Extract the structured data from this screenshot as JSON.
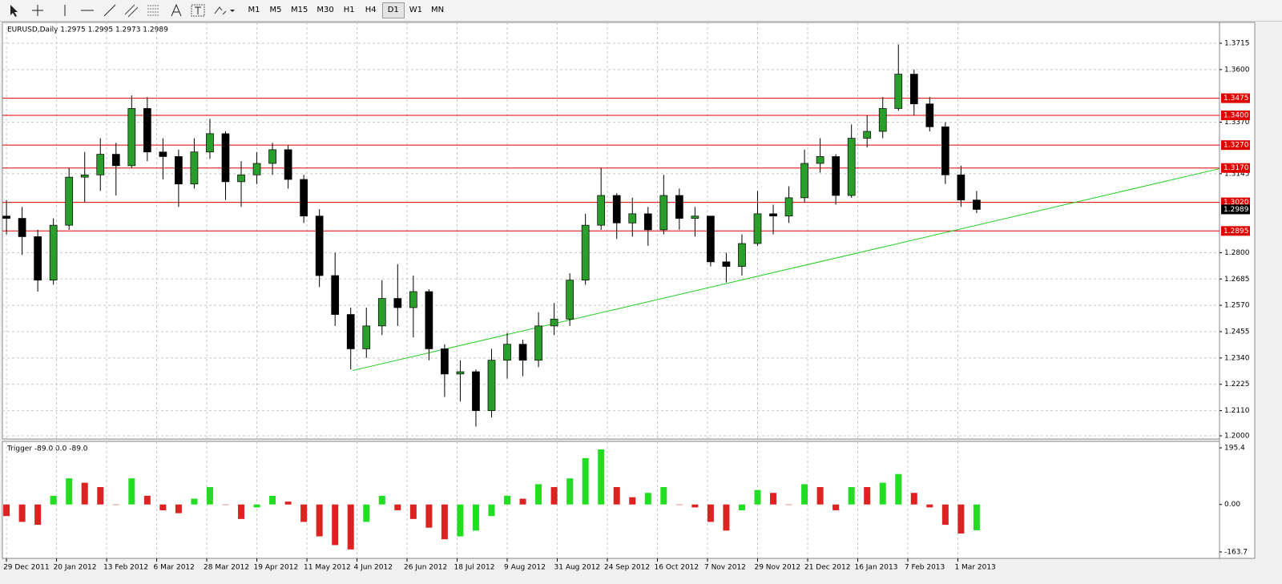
{
  "toolbar": {
    "timeframes": [
      "M1",
      "M5",
      "M15",
      "M30",
      "H1",
      "H4",
      "D1",
      "W1",
      "MN"
    ],
    "active": 6
  },
  "chart_data": [
    {
      "type": "candlestick",
      "title": "EURUSD,Daily  1.2975 1.2995 1.2973 1.2989",
      "x": [
        0,
        5,
        10,
        15,
        20,
        25,
        30,
        35,
        40,
        45,
        50,
        55,
        60,
        65,
        70,
        75,
        80,
        85,
        90,
        95,
        100,
        105,
        110,
        115,
        120,
        125,
        130,
        135,
        140,
        145,
        150,
        155,
        160,
        165,
        170,
        175,
        180,
        185,
        190,
        195,
        200,
        205,
        210,
        215,
        220,
        225,
        230,
        235,
        240,
        245,
        250,
        255,
        260,
        265,
        270,
        275,
        280,
        285,
        290,
        295,
        300,
        305,
        310
      ],
      "open": [
        1.296,
        1.295,
        1.287,
        1.268,
        1.292,
        1.313,
        1.314,
        1.323,
        1.318,
        1.343,
        1.324,
        1.322,
        1.31,
        1.324,
        1.332,
        1.311,
        1.314,
        1.319,
        1.325,
        1.312,
        1.296,
        1.27,
        1.253,
        1.238,
        1.248,
        1.26,
        1.256,
        1.263,
        1.238,
        1.227,
        1.228,
        1.211,
        1.233,
        1.24,
        1.233,
        1.248,
        1.251,
        1.268,
        1.292,
        1.305,
        1.293,
        1.297,
        1.29,
        1.305,
        1.295,
        1.296,
        1.276,
        1.274,
        1.284,
        1.297,
        1.296,
        1.304,
        1.319,
        1.322,
        1.305,
        1.33,
        1.333,
        1.343,
        1.358,
        1.345,
        1.335,
        1.314,
        1.303
      ],
      "high": [
        1.303,
        1.3,
        1.29,
        1.295,
        1.317,
        1.324,
        1.33,
        1.328,
        1.3487,
        1.348,
        1.33,
        1.325,
        1.33,
        1.3385,
        1.333,
        1.32,
        1.324,
        1.328,
        1.327,
        1.314,
        1.299,
        1.28,
        1.256,
        1.256,
        1.268,
        1.275,
        1.27,
        1.264,
        1.24,
        1.233,
        1.229,
        1.238,
        1.245,
        1.242,
        1.254,
        1.258,
        1.271,
        1.297,
        1.317,
        1.306,
        1.304,
        1.3,
        1.314,
        1.308,
        1.3,
        1.296,
        1.28,
        1.288,
        1.307,
        1.301,
        1.309,
        1.325,
        1.33,
        1.323,
        1.336,
        1.34,
        1.348,
        1.371,
        1.36,
        1.348,
        1.337,
        1.318,
        1.307
      ],
      "low": [
        1.288,
        1.279,
        1.263,
        1.266,
        1.29,
        1.302,
        1.307,
        1.305,
        1.317,
        1.32,
        1.312,
        1.3,
        1.308,
        1.321,
        1.303,
        1.3,
        1.31,
        1.314,
        1.308,
        1.293,
        1.265,
        1.248,
        1.229,
        1.234,
        1.244,
        1.248,
        1.243,
        1.233,
        1.217,
        1.215,
        1.204,
        1.208,
        1.225,
        1.226,
        1.23,
        1.244,
        1.248,
        1.266,
        1.29,
        1.286,
        1.287,
        1.283,
        1.288,
        1.29,
        1.287,
        1.274,
        1.267,
        1.27,
        1.283,
        1.288,
        1.293,
        1.302,
        1.315,
        1.301,
        1.304,
        1.326,
        1.33,
        1.342,
        1.34,
        1.333,
        1.31,
        1.3,
        1.2973
      ],
      "close": [
        1.295,
        1.287,
        1.268,
        1.292,
        1.313,
        1.314,
        1.323,
        1.318,
        1.343,
        1.324,
        1.322,
        1.31,
        1.324,
        1.332,
        1.311,
        1.314,
        1.319,
        1.325,
        1.312,
        1.296,
        1.27,
        1.253,
        1.238,
        1.248,
        1.26,
        1.256,
        1.263,
        1.238,
        1.227,
        1.228,
        1.211,
        1.233,
        1.24,
        1.233,
        1.248,
        1.251,
        1.268,
        1.292,
        1.305,
        1.293,
        1.297,
        1.29,
        1.305,
        1.295,
        1.296,
        1.276,
        1.274,
        1.284,
        1.297,
        1.296,
        1.304,
        1.319,
        1.322,
        1.305,
        1.33,
        1.333,
        1.343,
        1.358,
        1.345,
        1.335,
        1.314,
        1.303,
        1.2989
      ],
      "up_color": "#2a9d2a",
      "down_color": "#000000",
      "xlim": [
        -1.3,
        387.6
      ],
      "ylim": [
        1.1986,
        1.3806
      ],
      "yticks": [
        1.3715,
        {
          "value": 1.36,
          "label": "1.3600"
        },
        {
          "value": 1.337,
          "label": "1.3370"
        },
        1.3145,
        {
          "value": 1.28,
          "label": "1.2800"
        },
        1.2685,
        {
          "value": 1.257,
          "label": "1.2570"
        },
        1.2455,
        {
          "value": 1.234,
          "label": "1.2340"
        },
        1.2225,
        {
          "value": 1.211,
          "label": "1.2110"
        },
        {
          "value": 1.2,
          "label": "1.2000"
        }
      ],
      "levels": [
        1.3475,
        {
          "value": 1.34,
          "label": "1.3400"
        },
        {
          "value": 1.327,
          "label": "1.3270"
        },
        {
          "value": 1.317,
          "label": "1.3170"
        },
        {
          "value": 1.302,
          "label": "1.3020"
        },
        1.2895
      ],
      "level_color": "#e00000",
      "last_price": 1.2989,
      "trendline": {
        "x": [
          110.6,
          387.6
        ],
        "y": [
          1.2285,
          1.3167
        ],
        "color": "#22cc22"
      },
      "grid": true
    },
    {
      "type": "bar",
      "title": "Trigger -89.0 0.0 -89.0",
      "x": [
        0,
        5,
        10,
        15,
        20,
        25,
        30,
        35,
        40,
        45,
        50,
        55,
        60,
        65,
        70,
        75,
        80,
        85,
        90,
        95,
        100,
        105,
        110,
        115,
        120,
        125,
        130,
        135,
        140,
        145,
        150,
        155,
        160,
        165,
        170,
        175,
        180,
        185,
        190,
        195,
        200,
        205,
        210,
        215,
        220,
        225,
        230,
        235,
        240,
        245,
        250,
        255,
        260,
        265,
        270,
        275,
        280,
        285,
        290,
        295,
        300,
        305,
        310
      ],
      "values": [
        -40,
        -60,
        -70,
        30,
        90,
        75,
        60,
        0,
        90,
        30,
        -20,
        -30,
        20,
        60,
        0,
        -50,
        -10,
        30,
        10,
        -60,
        -110,
        -140,
        -155,
        -60,
        30,
        -20,
        -50,
        -80,
        -120,
        -110,
        -90,
        -40,
        30,
        20,
        70,
        60,
        90,
        160,
        190,
        60,
        25,
        40,
        60,
        0,
        -10,
        -60,
        -90,
        -20,
        50,
        40,
        0,
        70,
        60,
        -20,
        60,
        60,
        75,
        105,
        40,
        -10,
        -70,
        -100,
        -89
      ],
      "up_color": "#22dd22",
      "down_color": "#dd2222",
      "xlim": [
        -1.3,
        387.6
      ],
      "ylim": [
        -185.8,
        217.5
      ],
      "yticks": [
        195.4,
        {
          "value": 0,
          "label": "0.00"
        },
        -163.7
      ],
      "xticks": [
        {
          "value": 0,
          "label": "29 Dec 2011"
        },
        {
          "value": 16,
          "label": "20 Jan 2012"
        },
        {
          "value": 32,
          "label": "13 Feb 2012"
        },
        {
          "value": 48,
          "label": "6 Mar 2012"
        },
        {
          "value": 64,
          "label": "28 Mar 2012"
        },
        {
          "value": 80,
          "label": "19 Apr 2012"
        },
        {
          "value": 96,
          "label": "11 May 2012"
        },
        {
          "value": 112,
          "label": "4 Jun 2012"
        },
        {
          "value": 128,
          "label": "26 Jun 2012"
        },
        {
          "value": 144,
          "label": "18 Jul 2012"
        },
        {
          "value": 160,
          "label": "9 Aug 2012"
        },
        {
          "value": 176,
          "label": "31 Aug 2012"
        },
        {
          "value": 192,
          "label": "24 Sep 2012"
        },
        {
          "value": 208,
          "label": "16 Oct 2012"
        },
        {
          "value": 224,
          "label": "7 Nov 2012"
        },
        {
          "value": 240,
          "label": "29 Nov 2012"
        },
        {
          "value": 256,
          "label": "21 Dec 2012"
        },
        {
          "value": 272,
          "label": "16 Jan 2013"
        },
        {
          "value": 288,
          "label": "7 Feb 2013"
        },
        {
          "value": 304,
          "label": "1 Mar 2013"
        }
      ],
      "grid": true
    }
  ]
}
